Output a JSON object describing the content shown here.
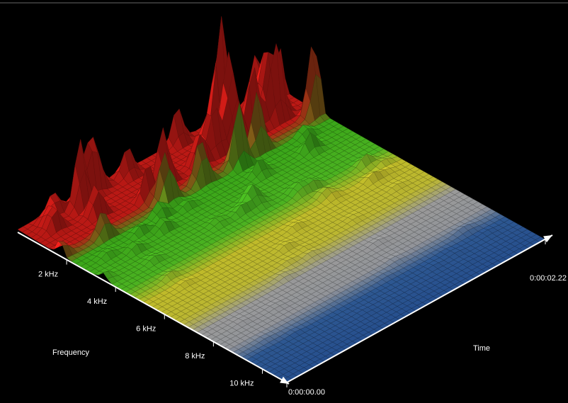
{
  "chart_data": {
    "type": "waterfall3d",
    "x_label": "Frequency",
    "y_label": "Time",
    "xlim": [
      0,
      11
    ],
    "xticks": [
      {
        "value": 2,
        "label": "2 kHz"
      },
      {
        "value": 4,
        "label": "4 kHz"
      },
      {
        "value": 6,
        "label": "6 kHz"
      },
      {
        "value": 8,
        "label": "8 kHz"
      },
      {
        "value": 10,
        "label": "10 kHz"
      }
    ],
    "ylim": [
      0,
      2.22
    ],
    "yticks": [
      {
        "value": 0,
        "label": "0:00:00.00"
      },
      {
        "value": 2.22,
        "label": "0:00:02.22"
      }
    ]
  }
}
